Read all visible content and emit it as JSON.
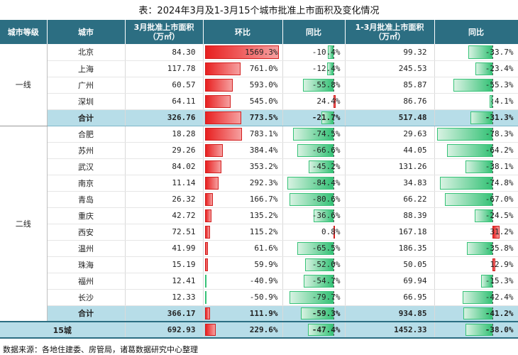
{
  "title": "表：2024年3月及1-3月15个城市批准上市面积及变化情况",
  "headers": {
    "tier": "城市等级",
    "city": "城市",
    "mar_area": "3月批准上市面积（万㎡）",
    "mom": "环比",
    "yoy1": "同比",
    "q1_area": "1-3月批准上市面积（万㎡）",
    "yoy2": "同比"
  },
  "groups": [
    {
      "tier": "一线",
      "rows": [
        {
          "city": "北京",
          "area": "84.30",
          "mom": "1569.3%",
          "mom_v": 1569.3,
          "yoy": "-10.4%",
          "yoy_v": -10.4,
          "q1": "99.32",
          "q1yoy": "-33.7%",
          "q1yoy_v": -33.7
        },
        {
          "city": "上海",
          "area": "117.78",
          "mom": "761.0%",
          "mom_v": 761.0,
          "yoy": "-12.4%",
          "yoy_v": -12.4,
          "q1": "245.53",
          "q1yoy": "-23.4%",
          "q1yoy_v": -23.4
        },
        {
          "city": "广州",
          "area": "60.57",
          "mom": "593.0%",
          "mom_v": 593.0,
          "yoy": "-55.8%",
          "yoy_v": -55.8,
          "q1": "85.87",
          "q1yoy": "-55.3%",
          "q1yoy_v": -55.3
        },
        {
          "city": "深圳",
          "area": "64.11",
          "mom": "545.0%",
          "mom_v": 545.0,
          "yoy": "24.4%",
          "yoy_v": 24.4,
          "q1": "86.76",
          "q1yoy": "-4.1%",
          "q1yoy_v": -4.1
        }
      ],
      "subtotal": {
        "city": "合计",
        "area": "326.76",
        "mom": "773.5%",
        "mom_v": 773.5,
        "yoy": "-21.7%",
        "yoy_v": -21.7,
        "q1": "517.48",
        "q1yoy": "-31.3%",
        "q1yoy_v": -31.3
      }
    },
    {
      "tier": "二线",
      "rows": [
        {
          "city": "合肥",
          "area": "18.28",
          "mom": "783.1%",
          "mom_v": 783.1,
          "yoy": "-74.5%",
          "yoy_v": -74.5,
          "q1": "29.63",
          "q1yoy": "-78.3%",
          "q1yoy_v": -78.3
        },
        {
          "city": "苏州",
          "area": "29.26",
          "mom": "384.4%",
          "mom_v": 384.4,
          "yoy": "-66.6%",
          "yoy_v": -66.6,
          "q1": "44.05",
          "q1yoy": "-64.2%",
          "q1yoy_v": -64.2
        },
        {
          "city": "武汉",
          "area": "84.02",
          "mom": "353.2%",
          "mom_v": 353.2,
          "yoy": "-45.2%",
          "yoy_v": -45.2,
          "q1": "131.26",
          "q1yoy": "-38.1%",
          "q1yoy_v": -38.1
        },
        {
          "city": "南京",
          "area": "11.14",
          "mom": "292.3%",
          "mom_v": 292.3,
          "yoy": "-84.4%",
          "yoy_v": -84.4,
          "q1": "34.83",
          "q1yoy": "-74.8%",
          "q1yoy_v": -74.8
        },
        {
          "city": "青岛",
          "area": "26.32",
          "mom": "166.7%",
          "mom_v": 166.7,
          "yoy": "-80.6%",
          "yoy_v": -80.6,
          "q1": "66.22",
          "q1yoy": "-67.0%",
          "q1yoy_v": -67.0
        },
        {
          "city": "重庆",
          "area": "42.72",
          "mom": "135.2%",
          "mom_v": 135.2,
          "yoy": "-36.6%",
          "yoy_v": -36.6,
          "q1": "88.39",
          "q1yoy": "-24.5%",
          "q1yoy_v": -24.5
        },
        {
          "city": "西安",
          "area": "72.51",
          "mom": "115.2%",
          "mom_v": 115.2,
          "yoy": "0.8%",
          "yoy_v": 0.8,
          "q1": "167.18",
          "q1yoy": "31.2%",
          "q1yoy_v": 31.2
        },
        {
          "city": "温州",
          "area": "41.99",
          "mom": "61.6%",
          "mom_v": 61.6,
          "yoy": "-65.5%",
          "yoy_v": -65.5,
          "q1": "186.35",
          "q1yoy": "-35.8%",
          "q1yoy_v": -35.8
        },
        {
          "city": "珠海",
          "area": "15.19",
          "mom": "59.9%",
          "mom_v": 59.9,
          "yoy": "-52.0%",
          "yoy_v": -52.0,
          "q1": "50.05",
          "q1yoy": "12.9%",
          "q1yoy_v": 12.9
        },
        {
          "city": "福州",
          "area": "12.41",
          "mom": "-40.9%",
          "mom_v": -40.9,
          "yoy": "-54.7%",
          "yoy_v": -54.7,
          "q1": "69.94",
          "q1yoy": "-15.3%",
          "q1yoy_v": -15.3
        },
        {
          "city": "长沙",
          "area": "12.33",
          "mom": "-50.9%",
          "mom_v": -50.9,
          "yoy": "-79.7%",
          "yoy_v": -79.7,
          "q1": "66.95",
          "q1yoy": "-42.4%",
          "q1yoy_v": -42.4
        }
      ],
      "subtotal": {
        "city": "合计",
        "area": "366.17",
        "mom": "111.9%",
        "mom_v": 111.9,
        "yoy": "-59.3%",
        "yoy_v": -59.3,
        "q1": "934.85",
        "q1yoy": "-41.2%",
        "q1yoy_v": -41.2
      }
    }
  ],
  "total": {
    "label": "15城",
    "area": "692.93",
    "mom": "229.6%",
    "mom_v": 229.6,
    "yoy": "-47.4%",
    "yoy_v": -47.4,
    "q1": "1452.33",
    "q1yoy": "-38.0%",
    "q1yoy_v": -38.0
  },
  "source": "数据来源：各地住建委、房管局，诸葛数据研究中心整理",
  "colors": {
    "header": "#2c6e82",
    "subtotal": "#b7dde8",
    "positive_bar": "#e82020",
    "negative_bar": "#36c277"
  }
}
